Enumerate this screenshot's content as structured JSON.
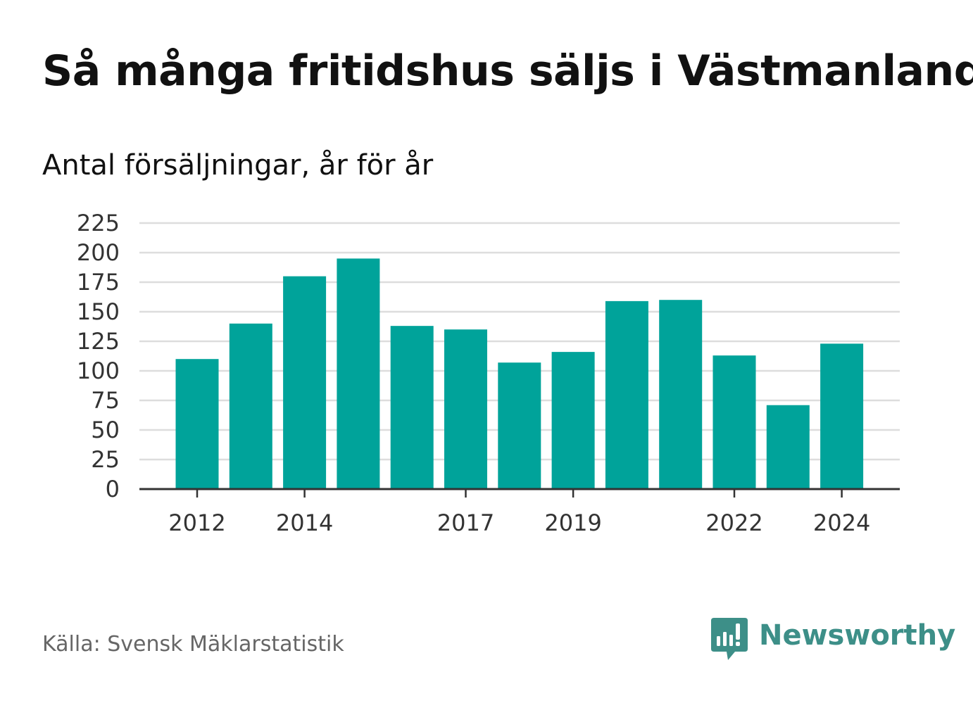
{
  "title": "Så många fritidshus säljs i Västmanland",
  "subtitle": "Antal försäljningar, år för år",
  "source": "Källa: Svensk Mäklarstatistik",
  "brand": {
    "name": "Newsworthy",
    "icon": "newsworthy-logo-icon",
    "color": "#3d8f88"
  },
  "colors": {
    "bar": "#00a39a",
    "grid": "#dddddd",
    "axis": "#333333"
  },
  "chart_data": {
    "type": "bar",
    "categories": [
      "2012",
      "2013",
      "2014",
      "2015",
      "2016",
      "2017",
      "2018",
      "2019",
      "2020",
      "2021",
      "2022",
      "2023",
      "2024"
    ],
    "values": [
      110,
      140,
      180,
      195,
      138,
      135,
      107,
      116,
      159,
      160,
      113,
      71,
      123
    ],
    "x_tick_labels": [
      "2012",
      "2014",
      "2017",
      "2019",
      "2022",
      "2024"
    ],
    "y_ticks": [
      0,
      25,
      50,
      75,
      100,
      125,
      150,
      175,
      200,
      225
    ],
    "ylim": [
      0,
      225
    ],
    "grid": true,
    "legend": "none"
  }
}
